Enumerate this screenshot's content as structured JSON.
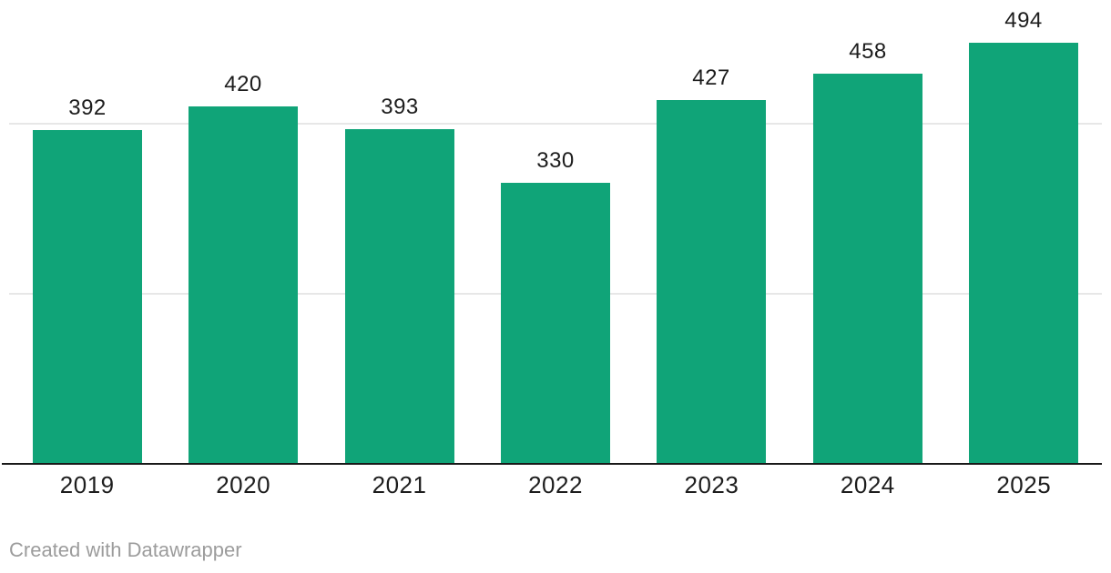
{
  "chart_data": {
    "type": "bar",
    "categories": [
      "2019",
      "2020",
      "2021",
      "2022",
      "2023",
      "2024",
      "2025"
    ],
    "values": [
      392,
      420,
      393,
      330,
      427,
      458,
      494
    ],
    "title": "",
    "xlabel": "",
    "ylabel": "",
    "ylim": [
      0,
      545
    ],
    "gridlines_at": [
      200,
      400
    ],
    "grid": true,
    "legend": "none",
    "value_labels_shown": true
  },
  "footer": {
    "attribution": "Created with Datawrapper"
  },
  "colors": {
    "bar": "#10a478",
    "gridline": "#e7e7e7",
    "axis_line": "#191919",
    "value_label": "#1d1d1d",
    "tick_label": "#1d1d1d",
    "attribution": "#9c9c9c",
    "background": "#ffffff"
  }
}
